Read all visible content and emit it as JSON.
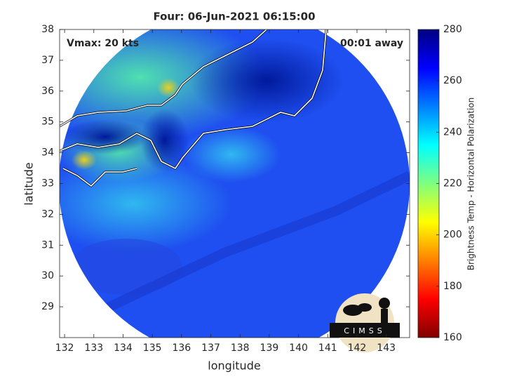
{
  "chart_data": {
    "type": "image",
    "title": "Four: 06-Jun-2021 06:15:00",
    "xlabel": "longitude",
    "ylabel": "latitude",
    "xlim": [
      131.83,
      143.8
    ],
    "xticks": [
      132,
      133,
      134,
      135,
      136,
      137,
      138,
      139,
      140,
      141,
      142,
      143
    ],
    "ylim": [
      28,
      38
    ],
    "yticks": [
      29,
      30,
      31,
      32,
      33,
      34,
      35,
      36,
      37,
      38
    ],
    "annotations": [
      "Vmax: 20 kts",
      "00:01 away"
    ],
    "colorbar": {
      "label": "Brightness Temp - Horizontal Polarization",
      "lim": [
        160,
        280
      ],
      "ticks": [
        160,
        180,
        200,
        220,
        240,
        260,
        280
      ],
      "colormap": "jet"
    },
    "logo": "CIMSS"
  }
}
